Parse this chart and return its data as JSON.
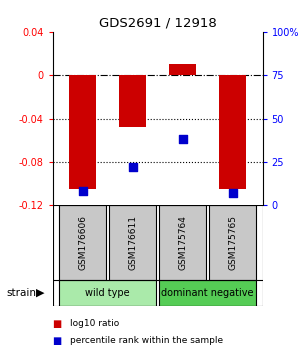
{
  "title": "GDS2691 / 12918",
  "samples": [
    "GSM176606",
    "GSM176611",
    "GSM175764",
    "GSM175765"
  ],
  "log10_ratio": [
    -0.105,
    -0.048,
    0.01,
    -0.105
  ],
  "percentile_rank": [
    0.08,
    0.22,
    0.38,
    0.07
  ],
  "ylim_left": [
    -0.12,
    0.04
  ],
  "ylim_right": [
    0.0,
    1.0
  ],
  "yticks_left": [
    -0.12,
    -0.08,
    -0.04,
    0.0,
    0.04
  ],
  "ytick_labels_left": [
    "-0.12",
    "-0.08",
    "-0.04",
    "0",
    "0.04"
  ],
  "yticks_right": [
    0.0,
    0.25,
    0.5,
    0.75,
    1.0
  ],
  "ytick_labels_right": [
    "0",
    "25",
    "50",
    "75",
    "100%"
  ],
  "hlines_dotted": [
    -0.04,
    -0.08
  ],
  "hline_dash": 0.0,
  "bar_color": "#cc0000",
  "dot_color": "#0000cc",
  "groups": [
    {
      "label": "wild type",
      "indices": [
        0,
        1
      ],
      "color": "#aaeaaa"
    },
    {
      "label": "dominant negative",
      "indices": [
        2,
        3
      ],
      "color": "#55cc55"
    }
  ],
  "strain_label": "strain",
  "legend_items": [
    {
      "color": "#cc0000",
      "label": "log10 ratio"
    },
    {
      "color": "#0000cc",
      "label": "percentile rank within the sample"
    }
  ],
  "background_color": "#ffffff",
  "sample_box_color": "#c8c8c8",
  "bar_width": 0.55
}
